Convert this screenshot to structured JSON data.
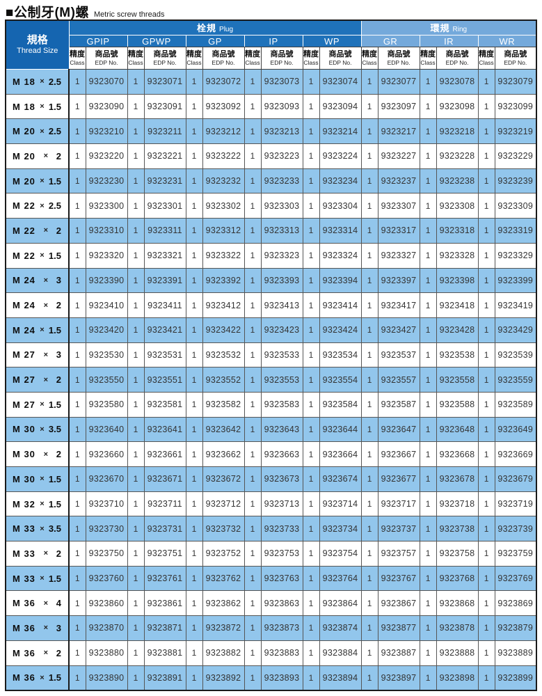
{
  "page": {
    "title_zh": "■公制牙(M)螺",
    "title_en": "Metric screw threads"
  },
  "colors": {
    "thread_header_blue": "#1565b0",
    "plug_blue": "#1f72ba",
    "ring_blue": "#74a9db",
    "row_alt_blue": "#92c6ec",
    "grid_dark": "#555555",
    "outer_border": "#1a1a1a"
  },
  "table": {
    "thread_size": {
      "zh": "規格",
      "en": "Thread Size"
    },
    "x_sign": "×",
    "groups": [
      {
        "id": "plug",
        "zh": "栓規",
        "en": "Plug",
        "columns": [
          "GPIP",
          "GPWP",
          "GP",
          "IP",
          "WP"
        ]
      },
      {
        "id": "ring",
        "zh": "環規",
        "en": "Ring",
        "columns": [
          "GR",
          "IR",
          "WR"
        ]
      }
    ],
    "col_subheader": {
      "class_zh": "精度",
      "class_en": "Class",
      "edp_zh": "商品號",
      "edp_en": "EDP No."
    },
    "rows": [
      {
        "size": "M 18",
        "pitch": "2.5",
        "cells": [
          [
            "1",
            "9323070"
          ],
          [
            "1",
            "9323071"
          ],
          [
            "1",
            "9323072"
          ],
          [
            "1",
            "9323073"
          ],
          [
            "1",
            "9323074"
          ],
          [
            "1",
            "9323077"
          ],
          [
            "1",
            "9323078"
          ],
          [
            "1",
            "9323079"
          ]
        ]
      },
      {
        "size": "M 18",
        "pitch": "1.5",
        "cells": [
          [
            "1",
            "9323090"
          ],
          [
            "1",
            "9323091"
          ],
          [
            "1",
            "9323092"
          ],
          [
            "1",
            "9323093"
          ],
          [
            "1",
            "9323094"
          ],
          [
            "1",
            "9323097"
          ],
          [
            "1",
            "9323098"
          ],
          [
            "1",
            "9323099"
          ]
        ]
      },
      {
        "size": "M 20",
        "pitch": "2.5",
        "cells": [
          [
            "1",
            "9323210"
          ],
          [
            "1",
            "9323211"
          ],
          [
            "1",
            "9323212"
          ],
          [
            "1",
            "9323213"
          ],
          [
            "1",
            "9323214"
          ],
          [
            "1",
            "9323217"
          ],
          [
            "1",
            "9323218"
          ],
          [
            "1",
            "9323219"
          ]
        ]
      },
      {
        "size": "M 20",
        "pitch": "2",
        "cells": [
          [
            "1",
            "9323220"
          ],
          [
            "1",
            "9323221"
          ],
          [
            "1",
            "9323222"
          ],
          [
            "1",
            "9323223"
          ],
          [
            "1",
            "9323224"
          ],
          [
            "1",
            "9323227"
          ],
          [
            "1",
            "9323228"
          ],
          [
            "1",
            "9323229"
          ]
        ]
      },
      {
        "size": "M 20",
        "pitch": "1.5",
        "cells": [
          [
            "1",
            "9323230"
          ],
          [
            "1",
            "9323231"
          ],
          [
            "1",
            "9323232"
          ],
          [
            "1",
            "9323233"
          ],
          [
            "1",
            "9323234"
          ],
          [
            "1",
            "9323237"
          ],
          [
            "1",
            "9323238"
          ],
          [
            "1",
            "9323239"
          ]
        ]
      },
      {
        "size": "M 22",
        "pitch": "2.5",
        "cells": [
          [
            "1",
            "9323300"
          ],
          [
            "1",
            "9323301"
          ],
          [
            "1",
            "9323302"
          ],
          [
            "1",
            "9323303"
          ],
          [
            "1",
            "9323304"
          ],
          [
            "1",
            "9323307"
          ],
          [
            "1",
            "9323308"
          ],
          [
            "1",
            "9323309"
          ]
        ]
      },
      {
        "size": "M 22",
        "pitch": "2",
        "cells": [
          [
            "1",
            "9323310"
          ],
          [
            "1",
            "9323311"
          ],
          [
            "1",
            "9323312"
          ],
          [
            "1",
            "9323313"
          ],
          [
            "1",
            "9323314"
          ],
          [
            "1",
            "9323317"
          ],
          [
            "1",
            "9323318"
          ],
          [
            "1",
            "9323319"
          ]
        ]
      },
      {
        "size": "M 22",
        "pitch": "1.5",
        "cells": [
          [
            "1",
            "9323320"
          ],
          [
            "1",
            "9323321"
          ],
          [
            "1",
            "9323322"
          ],
          [
            "1",
            "9323323"
          ],
          [
            "1",
            "9323324"
          ],
          [
            "1",
            "9323327"
          ],
          [
            "1",
            "9323328"
          ],
          [
            "1",
            "9323329"
          ]
        ]
      },
      {
        "size": "M 24",
        "pitch": "3",
        "cells": [
          [
            "1",
            "9323390"
          ],
          [
            "1",
            "9323391"
          ],
          [
            "1",
            "9323392"
          ],
          [
            "1",
            "9323393"
          ],
          [
            "1",
            "9323394"
          ],
          [
            "1",
            "9323397"
          ],
          [
            "1",
            "9323398"
          ],
          [
            "1",
            "9323399"
          ]
        ]
      },
      {
        "size": "M 24",
        "pitch": "2",
        "cells": [
          [
            "1",
            "9323410"
          ],
          [
            "1",
            "9323411"
          ],
          [
            "1",
            "9323412"
          ],
          [
            "1",
            "9323413"
          ],
          [
            "1",
            "9323414"
          ],
          [
            "1",
            "9323417"
          ],
          [
            "1",
            "9323418"
          ],
          [
            "1",
            "9323419"
          ]
        ]
      },
      {
        "size": "M 24",
        "pitch": "1.5",
        "cells": [
          [
            "1",
            "9323420"
          ],
          [
            "1",
            "9323421"
          ],
          [
            "1",
            "9323422"
          ],
          [
            "1",
            "9323423"
          ],
          [
            "1",
            "9323424"
          ],
          [
            "1",
            "9323427"
          ],
          [
            "1",
            "9323428"
          ],
          [
            "1",
            "9323429"
          ]
        ]
      },
      {
        "size": "M 27",
        "pitch": "3",
        "cells": [
          [
            "1",
            "9323530"
          ],
          [
            "1",
            "9323531"
          ],
          [
            "1",
            "9323532"
          ],
          [
            "1",
            "9323533"
          ],
          [
            "1",
            "9323534"
          ],
          [
            "1",
            "9323537"
          ],
          [
            "1",
            "9323538"
          ],
          [
            "1",
            "9323539"
          ]
        ]
      },
      {
        "size": "M 27",
        "pitch": "2",
        "cells": [
          [
            "1",
            "9323550"
          ],
          [
            "1",
            "9323551"
          ],
          [
            "1",
            "9323552"
          ],
          [
            "1",
            "9323553"
          ],
          [
            "1",
            "9323554"
          ],
          [
            "1",
            "9323557"
          ],
          [
            "1",
            "9323558"
          ],
          [
            "1",
            "9323559"
          ]
        ]
      },
      {
        "size": "M 27",
        "pitch": "1.5",
        "cells": [
          [
            "1",
            "9323580"
          ],
          [
            "1",
            "9323581"
          ],
          [
            "1",
            "9323582"
          ],
          [
            "1",
            "9323583"
          ],
          [
            "1",
            "9323584"
          ],
          [
            "1",
            "9323587"
          ],
          [
            "1",
            "9323588"
          ],
          [
            "1",
            "9323589"
          ]
        ]
      },
      {
        "size": "M 30",
        "pitch": "3.5",
        "cells": [
          [
            "1",
            "9323640"
          ],
          [
            "1",
            "9323641"
          ],
          [
            "1",
            "9323642"
          ],
          [
            "1",
            "9323643"
          ],
          [
            "1",
            "9323644"
          ],
          [
            "1",
            "9323647"
          ],
          [
            "1",
            "9323648"
          ],
          [
            "1",
            "9323649"
          ]
        ]
      },
      {
        "size": "M 30",
        "pitch": "2",
        "cells": [
          [
            "1",
            "9323660"
          ],
          [
            "1",
            "9323661"
          ],
          [
            "1",
            "9323662"
          ],
          [
            "1",
            "9323663"
          ],
          [
            "1",
            "9323664"
          ],
          [
            "1",
            "9323667"
          ],
          [
            "1",
            "9323668"
          ],
          [
            "1",
            "9323669"
          ]
        ]
      },
      {
        "size": "M 30",
        "pitch": "1.5",
        "cells": [
          [
            "1",
            "9323670"
          ],
          [
            "1",
            "9323671"
          ],
          [
            "1",
            "9323672"
          ],
          [
            "1",
            "9323673"
          ],
          [
            "1",
            "9323674"
          ],
          [
            "1",
            "9323677"
          ],
          [
            "1",
            "9323678"
          ],
          [
            "1",
            "9323679"
          ]
        ]
      },
      {
        "size": "M 32",
        "pitch": "1.5",
        "cells": [
          [
            "1",
            "9323710"
          ],
          [
            "1",
            "9323711"
          ],
          [
            "1",
            "9323712"
          ],
          [
            "1",
            "9323713"
          ],
          [
            "1",
            "9323714"
          ],
          [
            "1",
            "9323717"
          ],
          [
            "1",
            "9323718"
          ],
          [
            "1",
            "9323719"
          ]
        ]
      },
      {
        "size": "M 33",
        "pitch": "3.5",
        "cells": [
          [
            "1",
            "9323730"
          ],
          [
            "1",
            "9323731"
          ],
          [
            "1",
            "9323732"
          ],
          [
            "1",
            "9323733"
          ],
          [
            "1",
            "9323734"
          ],
          [
            "1",
            "9323737"
          ],
          [
            "1",
            "9323738"
          ],
          [
            "1",
            "9323739"
          ]
        ]
      },
      {
        "size": "M 33",
        "pitch": "2",
        "cells": [
          [
            "1",
            "9323750"
          ],
          [
            "1",
            "9323751"
          ],
          [
            "1",
            "9323752"
          ],
          [
            "1",
            "9323753"
          ],
          [
            "1",
            "9323754"
          ],
          [
            "1",
            "9323757"
          ],
          [
            "1",
            "9323758"
          ],
          [
            "1",
            "9323759"
          ]
        ]
      },
      {
        "size": "M 33",
        "pitch": "1.5",
        "cells": [
          [
            "1",
            "9323760"
          ],
          [
            "1",
            "9323761"
          ],
          [
            "1",
            "9323762"
          ],
          [
            "1",
            "9323763"
          ],
          [
            "1",
            "9323764"
          ],
          [
            "1",
            "9323767"
          ],
          [
            "1",
            "9323768"
          ],
          [
            "1",
            "9323769"
          ]
        ]
      },
      {
        "size": "M 36",
        "pitch": "4",
        "cells": [
          [
            "1",
            "9323860"
          ],
          [
            "1",
            "9323861"
          ],
          [
            "1",
            "9323862"
          ],
          [
            "1",
            "9323863"
          ],
          [
            "1",
            "9323864"
          ],
          [
            "1",
            "9323867"
          ],
          [
            "1",
            "9323868"
          ],
          [
            "1",
            "9323869"
          ]
        ]
      },
      {
        "size": "M 36",
        "pitch": "3",
        "cells": [
          [
            "1",
            "9323870"
          ],
          [
            "1",
            "9323871"
          ],
          [
            "1",
            "9323872"
          ],
          [
            "1",
            "9323873"
          ],
          [
            "1",
            "9323874"
          ],
          [
            "1",
            "9323877"
          ],
          [
            "1",
            "9323878"
          ],
          [
            "1",
            "9323879"
          ]
        ]
      },
      {
        "size": "M 36",
        "pitch": "2",
        "cells": [
          [
            "1",
            "9323880"
          ],
          [
            "1",
            "9323881"
          ],
          [
            "1",
            "9323882"
          ],
          [
            "1",
            "9323883"
          ],
          [
            "1",
            "9323884"
          ],
          [
            "1",
            "9323887"
          ],
          [
            "1",
            "9323888"
          ],
          [
            "1",
            "9323889"
          ]
        ]
      },
      {
        "size": "M 36",
        "pitch": "1.5",
        "cells": [
          [
            "1",
            "9323890"
          ],
          [
            "1",
            "9323891"
          ],
          [
            "1",
            "9323892"
          ],
          [
            "1",
            "9323893"
          ],
          [
            "1",
            "9323894"
          ],
          [
            "1",
            "9323897"
          ],
          [
            "1",
            "9323898"
          ],
          [
            "1",
            "9323899"
          ]
        ]
      }
    ]
  }
}
